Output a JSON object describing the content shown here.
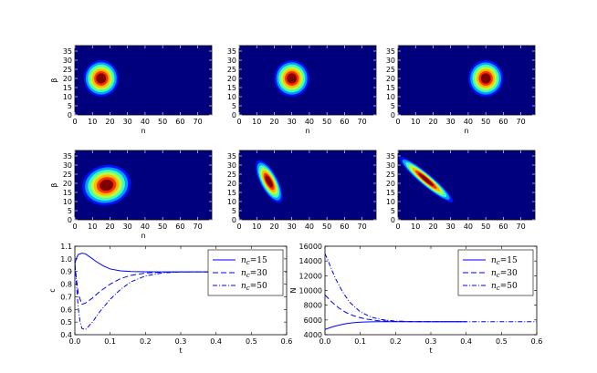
{
  "colors": {
    "line": "#0000ff",
    "frame": "#000000",
    "map_background": "#00007f"
  },
  "chart_data": [
    {
      "type": "heatmap",
      "xlabel": "n",
      "ylabel": "β",
      "xlim": [
        0,
        78
      ],
      "ylim": [
        0,
        38
      ],
      "xticks": [
        "0",
        "10",
        "20",
        "30",
        "40",
        "50",
        "60",
        "70"
      ],
      "yticks": [
        "0",
        "5",
        "10",
        "15",
        "20",
        "25",
        "30",
        "35"
      ],
      "colormap": "jet",
      "blob": {
        "center": [
          15,
          20
        ],
        "radius_n": 10,
        "radius_beta": 10,
        "tilt": 0
      }
    },
    {
      "type": "heatmap",
      "xlabel": "n",
      "ylabel": "",
      "xlim": [
        0,
        78
      ],
      "ylim": [
        0,
        38
      ],
      "xticks": [
        "0",
        "10",
        "20",
        "30",
        "40",
        "50",
        "60",
        "70"
      ],
      "yticks": [
        "0",
        "5",
        "10",
        "15",
        "20",
        "25",
        "30",
        "35"
      ],
      "colormap": "jet",
      "blob": {
        "center": [
          30,
          20
        ],
        "radius_n": 10,
        "radius_beta": 10,
        "tilt": 0
      }
    },
    {
      "type": "heatmap",
      "xlabel": "n",
      "ylabel": "",
      "xlim": [
        0,
        78
      ],
      "ylim": [
        0,
        38
      ],
      "xticks": [
        "0",
        "10",
        "20",
        "30",
        "40",
        "50",
        "60",
        "70"
      ],
      "yticks": [
        "0",
        "5",
        "10",
        "15",
        "20",
        "25",
        "30",
        "35"
      ],
      "colormap": "jet",
      "blob": {
        "center": [
          50,
          20
        ],
        "radius_n": 10,
        "radius_beta": 10,
        "tilt": 0
      }
    },
    {
      "type": "heatmap",
      "xlabel": "n",
      "ylabel": "β",
      "xlim": [
        0,
        78
      ],
      "ylim": [
        0,
        38
      ],
      "xticks": [
        "0",
        "10",
        "20",
        "30",
        "40",
        "50",
        "60",
        "70"
      ],
      "yticks": [
        "0",
        "5",
        "10",
        "15",
        "20",
        "25",
        "30",
        "35"
      ],
      "colormap": "jet",
      "blob": {
        "center": [
          18,
          19
        ],
        "radius_n": 14,
        "radius_beta": 11,
        "tilt": -12
      }
    },
    {
      "type": "heatmap",
      "xlabel": "",
      "ylabel": "",
      "xlim": [
        0,
        78
      ],
      "ylim": [
        0,
        38
      ],
      "xticks": [
        "0",
        "10",
        "20",
        "30",
        "40",
        "50",
        "60",
        "70"
      ],
      "yticks": [
        "0",
        "5",
        "10",
        "15",
        "20",
        "25",
        "30",
        "35"
      ],
      "colormap": "jet",
      "blob": {
        "center": [
          17,
          21
        ],
        "radius_n": 5,
        "radius_beta": 13,
        "tilt": -28
      }
    },
    {
      "type": "heatmap",
      "xlabel": "",
      "ylabel": "",
      "xlim": [
        0,
        78
      ],
      "ylim": [
        0,
        38
      ],
      "xticks": [
        "0",
        "10",
        "20",
        "30",
        "40",
        "50",
        "60",
        "70"
      ],
      "yticks": [
        "0",
        "5",
        "10",
        "15",
        "20",
        "25",
        "30",
        "35"
      ],
      "colormap": "jet",
      "blob": {
        "center": [
          16,
          22
        ],
        "radius_n": 3.5,
        "radius_beta": 19,
        "tilt": -50
      }
    },
    {
      "type": "line",
      "xlabel": "t",
      "ylabel": "c",
      "xlim": [
        0,
        0.6
      ],
      "ylim": [
        0.4,
        1.1
      ],
      "xticks": [
        "0.0",
        "0.1",
        "0.2",
        "0.3",
        "0.4",
        "0.5",
        "0.6"
      ],
      "yticks": [
        "0.4",
        "0.5",
        "0.6",
        "0.7",
        "0.8",
        "0.9",
        "1.0",
        "1.1"
      ],
      "legend": "top-right",
      "series": [
        {
          "name": "n_c = 15",
          "label_sym": "n",
          "label_sub": "c",
          "label_val": "=15",
          "style": "solid",
          "x": [
            0,
            0.005,
            0.01,
            0.02,
            0.03,
            0.04,
            0.06,
            0.08,
            0.1,
            0.13,
            0.16,
            0.2,
            0.25,
            0.3,
            0.35,
            0.4
          ],
          "y": [
            0.96,
            1.01,
            1.035,
            1.045,
            1.04,
            1.02,
            0.98,
            0.945,
            0.92,
            0.905,
            0.9,
            0.898,
            0.897,
            0.897,
            0.897,
            0.897
          ]
        },
        {
          "name": "n_c = 30",
          "label_sym": "n",
          "label_sub": "c",
          "label_val": "=30",
          "style": "dashed",
          "x": [
            0,
            0.005,
            0.01,
            0.02,
            0.03,
            0.05,
            0.07,
            0.1,
            0.13,
            0.16,
            0.2,
            0.25,
            0.3,
            0.35,
            0.4
          ],
          "y": [
            0.96,
            0.83,
            0.72,
            0.64,
            0.65,
            0.69,
            0.74,
            0.8,
            0.845,
            0.87,
            0.888,
            0.895,
            0.897,
            0.897,
            0.897
          ]
        },
        {
          "name": "n_c = 50",
          "label_sym": "n",
          "label_sub": "c",
          "label_val": "=50",
          "style": "dashdot",
          "x": [
            0,
            0.005,
            0.01,
            0.015,
            0.02,
            0.03,
            0.05,
            0.07,
            0.1,
            0.13,
            0.16,
            0.2,
            0.25,
            0.3,
            0.35,
            0.4,
            0.5,
            0.6
          ],
          "y": [
            0.97,
            0.78,
            0.6,
            0.5,
            0.45,
            0.44,
            0.5,
            0.58,
            0.68,
            0.76,
            0.82,
            0.865,
            0.89,
            0.896,
            0.897,
            0.897,
            0.897,
            0.897
          ]
        }
      ]
    },
    {
      "type": "line",
      "xlabel": "t",
      "ylabel": "N",
      "xlim": [
        0,
        0.6
      ],
      "ylim": [
        4000,
        16000
      ],
      "xticks": [
        "0.0",
        "0.1",
        "0.2",
        "0.3",
        "0.4",
        "0.5",
        "0.6"
      ],
      "yticks": [
        "4000",
        "6000",
        "8000",
        "10000",
        "12000",
        "14000",
        "16000"
      ],
      "legend": "top-right",
      "series": [
        {
          "name": "n_c = 15",
          "label_sym": "n",
          "label_sub": "c",
          "label_val": "=15",
          "style": "solid",
          "x": [
            0,
            0.02,
            0.04,
            0.06,
            0.08,
            0.1,
            0.12,
            0.15,
            0.2,
            0.25,
            0.3,
            0.35,
            0.4
          ],
          "y": [
            4700,
            5050,
            5300,
            5500,
            5620,
            5700,
            5740,
            5760,
            5770,
            5770,
            5770,
            5770,
            5770
          ]
        },
        {
          "name": "n_c = 30",
          "label_sym": "n",
          "label_sub": "c",
          "label_val": "=30",
          "style": "dashed",
          "x": [
            0,
            0.01,
            0.02,
            0.04,
            0.06,
            0.08,
            0.1,
            0.12,
            0.15,
            0.2,
            0.25,
            0.3,
            0.35,
            0.4
          ],
          "y": [
            9400,
            8900,
            8400,
            7600,
            7000,
            6600,
            6300,
            6100,
            5900,
            5800,
            5770,
            5770,
            5770,
            5770
          ]
        },
        {
          "name": "n_c = 50",
          "label_sym": "n",
          "label_sub": "c",
          "label_val": "=50",
          "style": "dashdot",
          "x": [
            0,
            0.01,
            0.02,
            0.03,
            0.05,
            0.07,
            0.1,
            0.13,
            0.16,
            0.2,
            0.25,
            0.3,
            0.35,
            0.4,
            0.5,
            0.6
          ],
          "y": [
            15000,
            13900,
            12700,
            11600,
            9800,
            8400,
            7100,
            6400,
            6050,
            5850,
            5780,
            5770,
            5770,
            5770,
            5770,
            5770
          ]
        }
      ]
    }
  ]
}
